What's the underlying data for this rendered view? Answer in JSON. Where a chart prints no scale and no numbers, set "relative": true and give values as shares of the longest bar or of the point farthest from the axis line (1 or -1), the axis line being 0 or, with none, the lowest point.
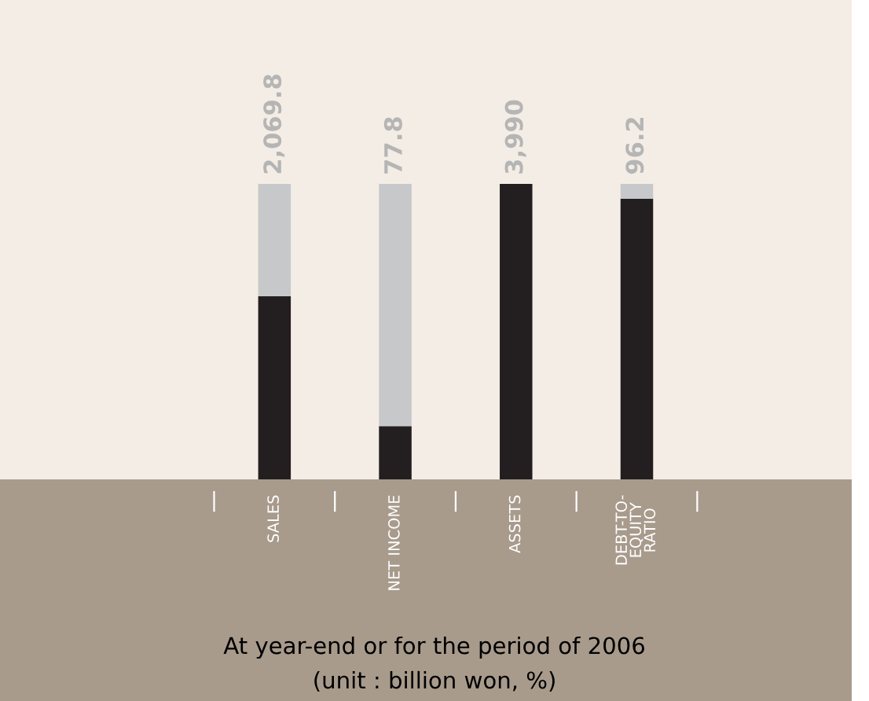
{
  "chart_data": {
    "type": "bar",
    "relative": true,
    "stacked": true,
    "categories": [
      "SALES",
      "NET INCOME",
      "ASSETS",
      "DEBT-TO-\nEQUITY\nRATIO"
    ],
    "series": [
      {
        "color": "#231f20",
        "values": [
          0.62,
          0.18,
          1.0,
          0.95
        ]
      },
      {
        "color": "#c7c8ca",
        "values": [
          0.38,
          0.82,
          0.0,
          0.05
        ]
      }
    ],
    "annotations": [
      {
        "text": "2,069.8",
        "x": "SALES",
        "y": 1.0
      },
      {
        "text": "77.8",
        "x": "NET INCOME",
        "y": 1.0
      },
      {
        "text": "3,990",
        "x": "ASSETS",
        "y": 1.0
      },
      {
        "text": "96.2",
        "x": "DEBT-TO-\nEQUITY\nRATIO",
        "y": 1.0
      },
      "At year-end or for the period of 2006",
      "(unit : billion won, %)"
    ],
    "grid": false,
    "legend": false
  }
}
